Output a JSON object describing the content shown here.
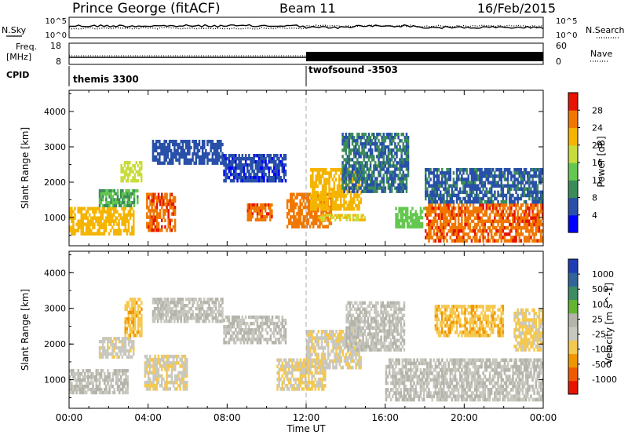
{
  "header": {
    "title": "Prince George (fitACF)",
    "beam": "Beam 11",
    "date": "16/Feb/2015"
  },
  "top_panels": {
    "nsky_label": "N.Sky",
    "nsky_ticks": [
      "10^5",
      "10^0"
    ],
    "nsearch_label": "N.Search",
    "nsearch_ticks": [
      "10^5",
      "10^0"
    ],
    "freq_label_1": "Freq.",
    "freq_label_2": "[MHz]",
    "freq_ticks": [
      "18",
      "8"
    ],
    "nave_label": "Nave",
    "nave_ticks": [
      "60",
      "0"
    ],
    "cpid_label": "CPID",
    "cpid_modes": [
      {
        "name": "themis 3300",
        "start_hour": 0
      },
      {
        "name": "twofsound -3503",
        "start_hour": 12
      }
    ]
  },
  "x_axis": {
    "label": "Time UT",
    "ticks": [
      "00:00",
      "04:00",
      "08:00",
      "12:00",
      "16:00",
      "20:00",
      "00:00"
    ]
  },
  "colors": {
    "power": [
      "#0000ff",
      "#2850a8",
      "#3c8c5a",
      "#64c850",
      "#c8dc3c",
      "#f5b400",
      "#f07800",
      "#e61400"
    ],
    "velocity": [
      "#e61400",
      "#f05a00",
      "#f09600",
      "#f5c850",
      "#c8c8c0",
      "#b4b4aa",
      "#64b432",
      "#3c8c64",
      "#32649a",
      "#1e3cb4"
    ]
  },
  "chart_data": [
    {
      "type": "heatmap",
      "title": "",
      "ylabel": "Slant Range [km]",
      "xlabel": "",
      "ylim": [
        200,
        4600
      ],
      "yticks": [
        "4000",
        "3000",
        "2000",
        "1000"
      ],
      "colorbar_label": "Power [dB]",
      "colorbar_ticks": [
        "28",
        "24",
        "20",
        "16",
        "12",
        "8",
        "4"
      ],
      "colorbar_range": [
        0,
        32
      ],
      "x_hours": [
        0,
        24
      ],
      "echo_bands": [
        {
          "t0": 0.0,
          "t1": 3.3,
          "r0": 500,
          "r1": 1300,
          "level": 22
        },
        {
          "t0": 1.5,
          "t1": 3.5,
          "r0": 1300,
          "r1": 1800,
          "level": 12
        },
        {
          "t0": 2.6,
          "t1": 3.7,
          "r0": 2000,
          "r1": 2600,
          "level": 18
        },
        {
          "t0": 3.9,
          "t1": 5.4,
          "r0": 600,
          "r1": 1700,
          "level": 27
        },
        {
          "t0": 4.2,
          "t1": 7.8,
          "r0": 2500,
          "r1": 3200,
          "level": 6
        },
        {
          "t0": 7.8,
          "t1": 11.0,
          "r0": 2000,
          "r1": 2800,
          "level": 5
        },
        {
          "t0": 9.0,
          "t1": 10.3,
          "r0": 900,
          "r1": 1400,
          "level": 27
        },
        {
          "t0": 11.0,
          "t1": 13.3,
          "r0": 700,
          "r1": 1700,
          "level": 26
        },
        {
          "t0": 12.2,
          "t1": 14.8,
          "r0": 1200,
          "r1": 2400,
          "level": 22
        },
        {
          "t0": 12.6,
          "t1": 15.0,
          "r0": 900,
          "r1": 1100,
          "level": 20
        },
        {
          "t0": 13.8,
          "t1": 17.2,
          "r0": 1700,
          "r1": 3400,
          "level": 8
        },
        {
          "t0": 16.5,
          "t1": 18.0,
          "r0": 700,
          "r1": 1300,
          "level": 14
        },
        {
          "t0": 18.0,
          "t1": 24.0,
          "r0": 300,
          "r1": 1400,
          "level": 27
        },
        {
          "t0": 18.0,
          "t1": 24.0,
          "r0": 1400,
          "r1": 2400,
          "level": 7
        }
      ]
    },
    {
      "type": "heatmap",
      "title": "",
      "ylabel": "Slant Range [km]",
      "xlabel": "Time UT",
      "ylim": [
        200,
        4600
      ],
      "yticks": [
        "4000",
        "3000",
        "2000",
        "1000"
      ],
      "colorbar_label": "Velocity [m s^-1]",
      "colorbar_ticks": [
        "1000",
        "500",
        "100",
        "25",
        "-25",
        "-100",
        "-500",
        "-1000"
      ],
      "colorbar_range": [
        -1200,
        1200
      ],
      "x_hours": [
        0,
        24
      ],
      "echo_bands": [
        {
          "t0": 0.0,
          "t1": 3.0,
          "r0": 600,
          "r1": 1300,
          "level": 0
        },
        {
          "t0": 1.5,
          "t1": 3.3,
          "r0": 1600,
          "r1": 2200,
          "level": -150
        },
        {
          "t0": 2.8,
          "t1": 3.7,
          "r0": 2200,
          "r1": 3300,
          "level": -400
        },
        {
          "t0": 3.8,
          "t1": 6.0,
          "r0": 700,
          "r1": 1700,
          "level": -200
        },
        {
          "t0": 4.2,
          "t1": 7.8,
          "r0": 2600,
          "r1": 3300,
          "level": 0
        },
        {
          "t0": 7.8,
          "t1": 11.0,
          "r0": 2000,
          "r1": 2800,
          "level": 0
        },
        {
          "t0": 10.5,
          "t1": 13.0,
          "r0": 700,
          "r1": 1600,
          "level": -250
        },
        {
          "t0": 12.0,
          "t1": 14.8,
          "r0": 1300,
          "r1": 2400,
          "level": -200
        },
        {
          "t0": 14.0,
          "t1": 17.0,
          "r0": 1800,
          "r1": 3200,
          "level": 0
        },
        {
          "t0": 16.0,
          "t1": 24.0,
          "r0": 400,
          "r1": 1600,
          "level": 0
        },
        {
          "t0": 18.5,
          "t1": 22.0,
          "r0": 2200,
          "r1": 3100,
          "level": -400
        },
        {
          "t0": 22.5,
          "t1": 24.0,
          "r0": 1800,
          "r1": 3000,
          "level": -300
        }
      ]
    }
  ]
}
